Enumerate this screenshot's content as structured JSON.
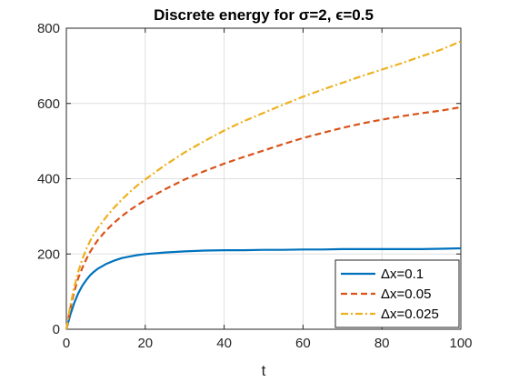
{
  "chart_data": {
    "type": "line",
    "title": "Discrete energy for σ=2, ϵ=0.5",
    "xlabel": "t",
    "ylabel": "",
    "xlim": [
      0,
      100
    ],
    "ylim": [
      0,
      800
    ],
    "xticks": [
      0,
      20,
      40,
      60,
      80,
      100
    ],
    "yticks": [
      0,
      200,
      400,
      600,
      800
    ],
    "grid": true,
    "legend_position": "bottom-right",
    "x": [
      0,
      1,
      2,
      3,
      4,
      5,
      6,
      7,
      8,
      10,
      12,
      14,
      16,
      18,
      20,
      25,
      30,
      35,
      40,
      45,
      50,
      55,
      60,
      65,
      70,
      75,
      80,
      85,
      90,
      95,
      100
    ],
    "series": [
      {
        "name": "Δx=0.1",
        "color": "#0072BD",
        "dash": "solid",
        "values": [
          0,
          38,
          70,
          95,
          115,
          130,
          143,
          153,
          161,
          173,
          182,
          189,
          193,
          197,
          200,
          204,
          207,
          209,
          210,
          210,
          211,
          211,
          212,
          212,
          213,
          213,
          213,
          213,
          213,
          214,
          215
        ]
      },
      {
        "name": "Δx=0.05",
        "color": "#D95319",
        "dash": "dashed",
        "values": [
          0,
          55,
          100,
          135,
          162,
          185,
          205,
          222,
          237,
          262,
          282,
          300,
          316,
          330,
          343,
          372,
          398,
          420,
          440,
          458,
          475,
          492,
          508,
          522,
          535,
          547,
          557,
          566,
          574,
          581,
          590
        ]
      },
      {
        "name": "Δx=0.025",
        "color": "#EDB120",
        "dash": "dashdot",
        "values": [
          0,
          62,
          112,
          152,
          185,
          212,
          234,
          253,
          269,
          297,
          322,
          344,
          364,
          382,
          398,
          436,
          470,
          500,
          528,
          553,
          575,
          597,
          618,
          637,
          655,
          673,
          690,
          707,
          725,
          743,
          765
        ]
      }
    ]
  }
}
